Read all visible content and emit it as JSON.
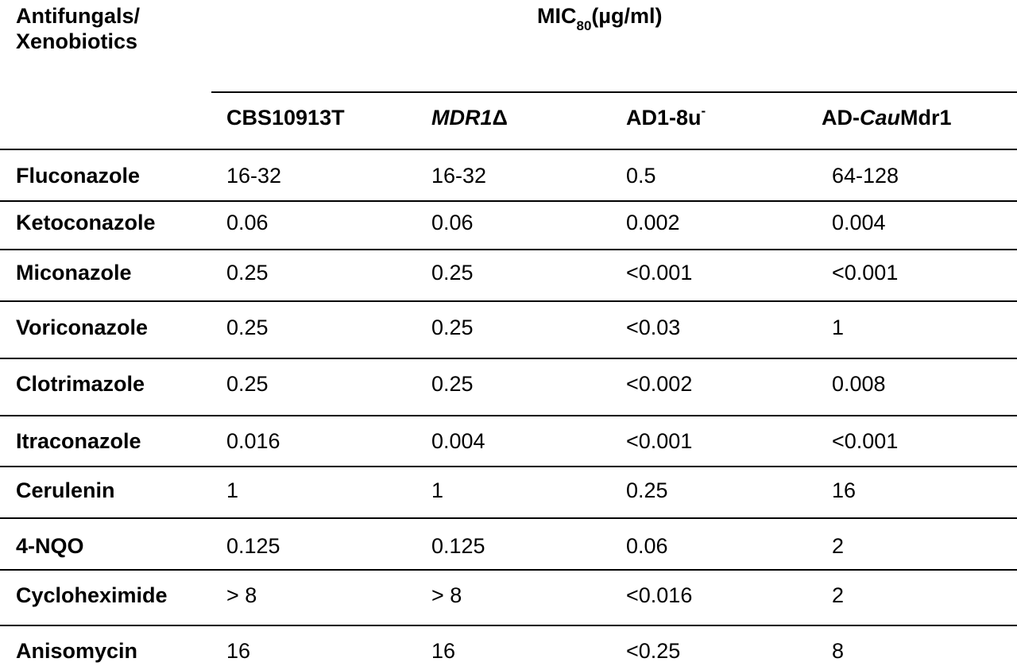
{
  "header": {
    "row_header_line1": "Antifungals/",
    "row_header_line2": "Xenobiotics",
    "mic_label": "MIC",
    "mic_subscript": "80",
    "mic_units": "(µg/ml)"
  },
  "columns": {
    "c1": "CBS10913T",
    "c2_italic": "MDR1",
    "c2_suffix": "Δ",
    "c3": "AD1-8u",
    "c3_superscript": "-",
    "c4_prefix": "AD-",
    "c4_italic": "Cau",
    "c4_suffix": "Mdr1"
  },
  "rows": [
    {
      "label": "Fluconazole",
      "values": [
        "16-32",
        "16-32",
        "0.5",
        "64-128"
      ]
    },
    {
      "label": "Ketoconazole",
      "values": [
        "0.06",
        "0.06",
        "0.002",
        "0.004"
      ]
    },
    {
      "label": "Miconazole",
      "values": [
        "0.25",
        "0.25",
        "<0.001",
        "<0.001"
      ]
    },
    {
      "label": "Voriconazole",
      "values": [
        "0.25",
        "0.25",
        "<0.03",
        "1"
      ]
    },
    {
      "label": "Clotrimazole",
      "values": [
        "0.25",
        "0.25",
        "<0.002",
        "0.008"
      ]
    },
    {
      "label": "Itraconazole",
      "values": [
        "0.016",
        "0.004",
        "<0.001",
        "<0.001"
      ]
    },
    {
      "label": "Cerulenin",
      "values": [
        "1",
        "1",
        "0.25",
        "16"
      ]
    },
    {
      "label": "4-NQO",
      "values": [
        "0.125",
        "0.125",
        "0.06",
        "2"
      ]
    },
    {
      "label": "Cycloheximide",
      "values": [
        "> 8",
        "> 8",
        "<0.016",
        "2"
      ]
    },
    {
      "label": "Anisomycin",
      "values": [
        "16",
        "16",
        "<0.25",
        "8"
      ]
    }
  ]
}
